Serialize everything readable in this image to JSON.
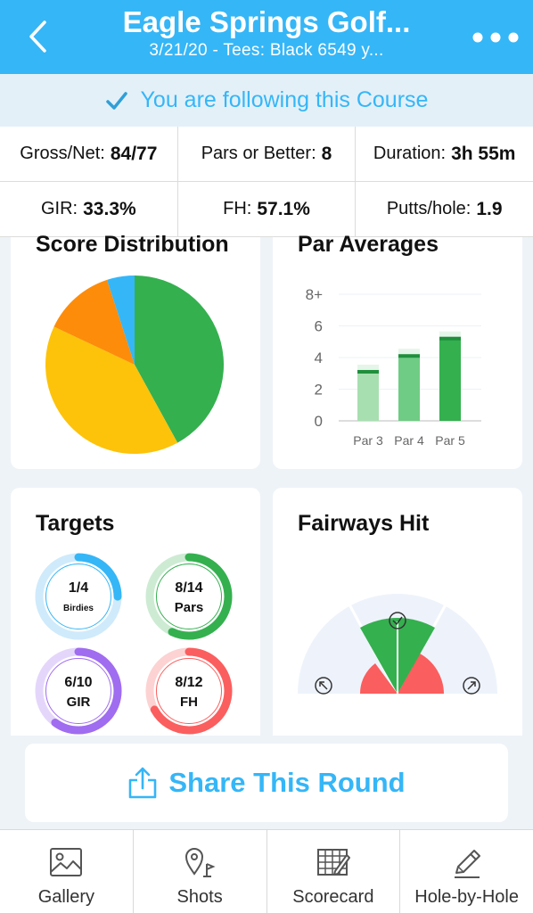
{
  "header": {
    "title": "Eagle Springs Golf...",
    "subtitle": "3/21/20 - Tees: Black 6549 y..."
  },
  "follow": {
    "text": "You are following this Course"
  },
  "stats": {
    "gross_net": {
      "label": "Gross/Net:",
      "value": "84/77"
    },
    "pars_or_better": {
      "label": "Pars or Better:",
      "value": "8"
    },
    "duration": {
      "label": "Duration:",
      "value": "3h 55m"
    },
    "gir": {
      "label": "GIR:",
      "value": "33.3%"
    },
    "fh": {
      "label": "FH:",
      "value": "57.1%"
    },
    "putts": {
      "label": "Putts/hole:",
      "value": "1.9"
    }
  },
  "score_distribution": {
    "title": "Score Distribution",
    "slices": [
      {
        "fraction": 0.42,
        "color": "#34b04f"
      },
      {
        "fraction": 0.4,
        "color": "#fdc30a"
      },
      {
        "fraction": 0.13,
        "color": "#fd8c0a"
      },
      {
        "fraction": 0.05,
        "color": "#35b6f7"
      }
    ]
  },
  "par_averages": {
    "title": "Par Averages",
    "chart_data": {
      "type": "bar",
      "categories": [
        "Par 3",
        "Par 4",
        "Par 5"
      ],
      "values": [
        3.1,
        4.1,
        5.2
      ],
      "ylim": [
        0,
        8
      ],
      "yticks": [
        "0",
        "2",
        "4",
        "6",
        "8+"
      ],
      "colors": [
        "#a8dfb0",
        "#6fcc84",
        "#34b04f"
      ]
    }
  },
  "targets": {
    "title": "Targets",
    "rings": [
      {
        "num": "1/4",
        "label": "Birdies",
        "fraction": 0.25,
        "color": "#35b6f7",
        "track": "#cfeafb"
      },
      {
        "num": "8/14",
        "label": "Pars",
        "fraction": 0.57,
        "color": "#34b04f",
        "track": "#cdebd3"
      },
      {
        "num": "6/10",
        "label": "GIR",
        "fraction": 0.6,
        "color": "#a06cf0",
        "track": "#e4d6fb"
      },
      {
        "num": "8/12",
        "label": "FH",
        "fraction": 0.67,
        "color": "#fb5e5e",
        "track": "#fdd2d2"
      }
    ]
  },
  "fairways_hit": {
    "title": "Fairways Hit"
  },
  "share": {
    "label": "Share This Round"
  },
  "tabs": [
    {
      "label": "Gallery",
      "icon": "image-icon"
    },
    {
      "label": "Shots",
      "icon": "pin-flag-icon"
    },
    {
      "label": "Scorecard",
      "icon": "scorecard-icon"
    },
    {
      "label": "Hole-by-Hole",
      "icon": "pencil-icon"
    }
  ]
}
